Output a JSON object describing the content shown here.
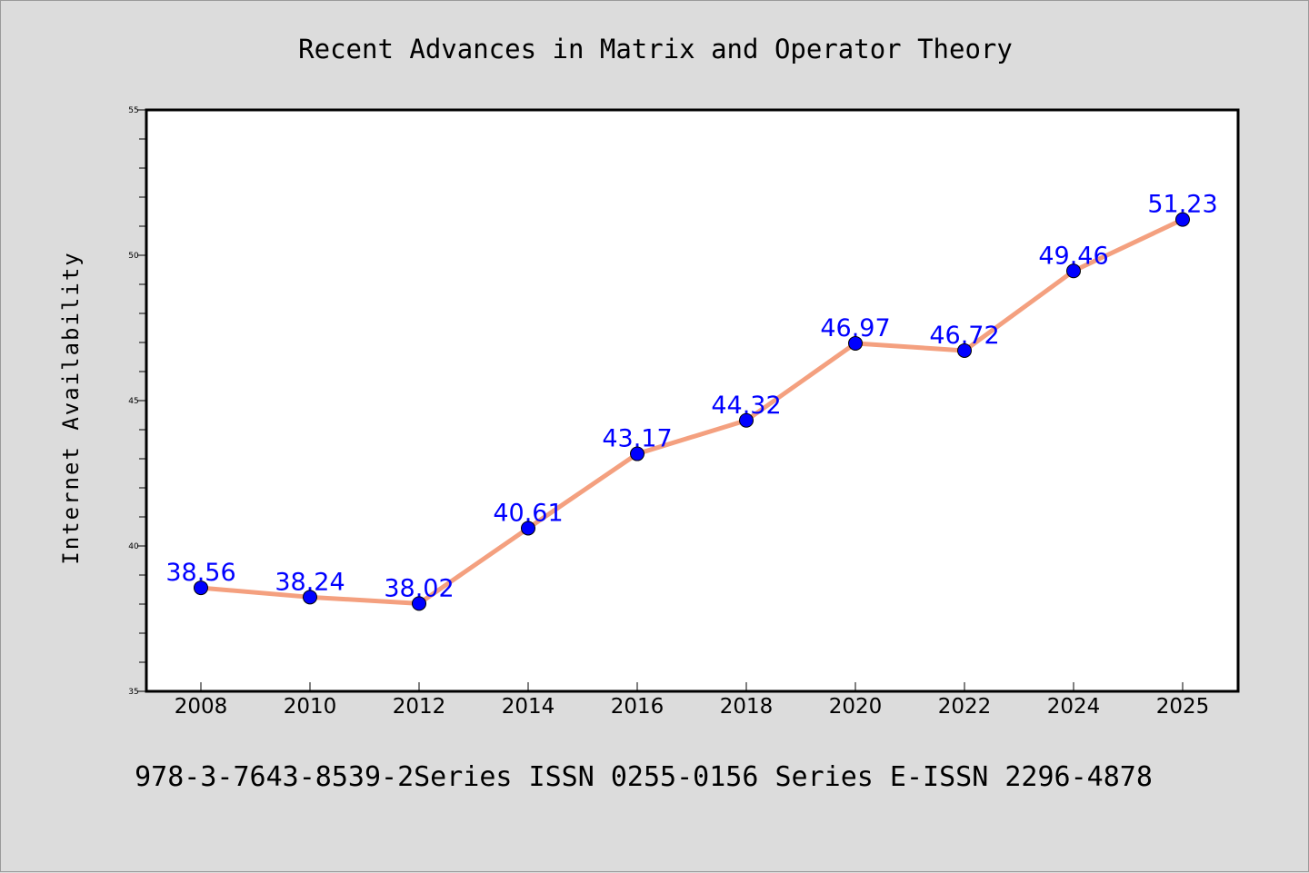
{
  "chart_data": {
    "type": "line",
    "title": "Recent Advances in Matrix and Operator Theory",
    "ylabel": "Internet Availability",
    "xlabel": "",
    "categories": [
      "2008",
      "2010",
      "2012",
      "2014",
      "2016",
      "2018",
      "2020",
      "2022",
      "2024",
      "2025"
    ],
    "series": [
      {
        "values": [
          38.56,
          38.24,
          38.02,
          40.61,
          43.17,
          44.32,
          46.97,
          46.72,
          49.46,
          51.23
        ],
        "data_labels": [
          "38.56",
          "38.24",
          "38.02",
          "40.61",
          "43.17",
          "44.32",
          "46.97",
          "46.72",
          "49.46",
          "51.23"
        ]
      }
    ],
    "ylim": [
      35,
      55
    ],
    "y_ticks": [
      "35",
      "40",
      "45",
      "50",
      "55"
    ],
    "y_minor_step": 1,
    "grid": false,
    "footer": "978-3-7643-8539-2Series ISSN 0255-0156 Series E-ISSN 2296-4878",
    "colors": {
      "background": "#dcdcdc",
      "plot_background": "#ffffff",
      "line": "#f4a07f",
      "marker": "#0000ff",
      "data_label": "#0000ff",
      "axis": "#000000"
    }
  }
}
